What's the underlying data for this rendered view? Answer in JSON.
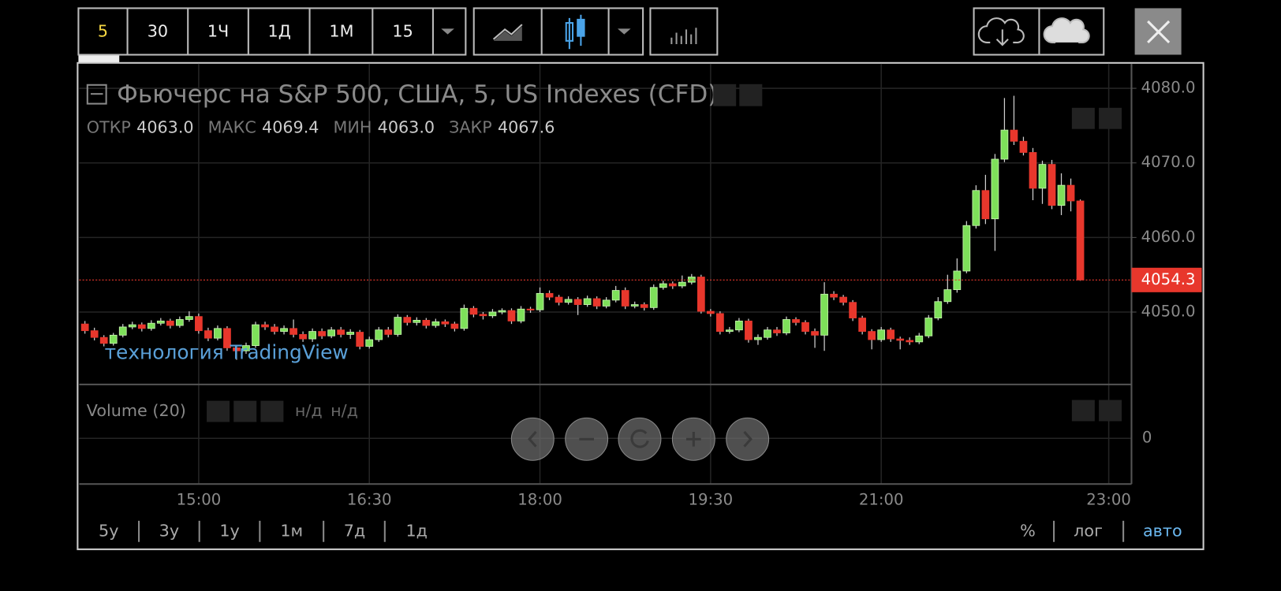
{
  "toolbar": {
    "intervals": [
      "5",
      "30",
      "1Ч",
      "1Д",
      "1М",
      "15"
    ]
  },
  "chart_data": {
    "type": "candlestick",
    "title": "Фьючерс на S&P 500, США, 5, US Indexes (CFD)",
    "ohlc_legend": [
      {
        "label": "ОТКР",
        "value": "4063.0"
      },
      {
        "label": "МАКС",
        "value": "4069.4"
      },
      {
        "label": "МИН",
        "value": "4063.0"
      },
      {
        "label": "ЗАКР",
        "value": "4067.6"
      }
    ],
    "x": [
      "14:00",
      "14:05",
      "14:10",
      "14:15",
      "14:20",
      "14:25",
      "14:30",
      "14:35",
      "14:40",
      "14:45",
      "14:50",
      "14:55",
      "15:00",
      "15:05",
      "15:10",
      "15:15",
      "15:20",
      "15:25",
      "15:30",
      "15:35",
      "15:40",
      "15:45",
      "15:50",
      "15:55",
      "16:00",
      "16:05",
      "16:10",
      "16:15",
      "16:20",
      "16:25",
      "16:30",
      "16:35",
      "16:40",
      "16:45",
      "16:50",
      "16:55",
      "17:00",
      "17:05",
      "17:10",
      "17:15",
      "17:20",
      "17:25",
      "17:30",
      "17:35",
      "17:40",
      "17:45",
      "17:50",
      "17:55",
      "18:00",
      "18:05",
      "18:10",
      "18:15",
      "18:20",
      "18:25",
      "18:30",
      "18:35",
      "18:40",
      "18:45",
      "18:50",
      "18:55",
      "19:00",
      "19:05",
      "19:10",
      "19:15",
      "19:20",
      "19:25",
      "19:30",
      "19:35",
      "19:40",
      "19:45",
      "19:50",
      "19:55",
      "20:00",
      "20:05",
      "20:10",
      "20:15",
      "20:20",
      "20:25",
      "20:30",
      "20:35",
      "20:40",
      "20:45",
      "20:50",
      "20:55",
      "21:00",
      "21:05",
      "21:10",
      "21:15",
      "21:20",
      "21:25",
      "21:30",
      "21:35",
      "21:40",
      "21:45",
      "21:50",
      "21:55",
      "22:00",
      "22:05",
      "22:10",
      "22:15",
      "22:20",
      "22:25",
      "22:30",
      "22:35",
      "22:40",
      "22:45"
    ],
    "open": [
      4048.4,
      4047.5,
      4046.6,
      4045.8,
      4046.9,
      4048.0,
      4048.3,
      4047.8,
      4048.5,
      4048.8,
      4048.2,
      4049.0,
      4049.4,
      4047.5,
      4046.5,
      4047.8,
      4045.2,
      4044.8,
      4045.5,
      4048.3,
      4048.0,
      4047.4,
      4047.8,
      4047.0,
      4046.4,
      4047.4,
      4046.8,
      4047.6,
      4047.0,
      4047.3,
      4045.4,
      4046.3,
      4047.6,
      4047.0,
      4049.3,
      4048.6,
      4048.9,
      4048.2,
      4048.7,
      4048.4,
      4047.8,
      4050.5,
      4049.7,
      4049.5,
      4050.0,
      4050.2,
      4048.8,
      4050.4,
      4050.3,
      4052.5,
      4052.0,
      4051.3,
      4051.7,
      4051.0,
      4051.8,
      4050.8,
      4051.6,
      4052.9,
      4050.8,
      4051.0,
      4050.6,
      4053.3,
      4053.8,
      4053.5,
      4054.0,
      4054.7,
      4050.1,
      4049.8,
      4047.4,
      4047.6,
      4048.8,
      4046.3,
      4046.6,
      4047.6,
      4047.2,
      4049.0,
      4048.6,
      4047.4,
      4046.9,
      4052.4,
      4052.0,
      4051.3,
      4049.2,
      4047.4,
      4046.3,
      4047.6,
      4046.4,
      4046.2,
      4046.0,
      4046.8,
      4049.2,
      4051.4,
      4053.0,
      4055.5,
      4061.6,
      4066.3,
      4062.5,
      4070.5,
      4074.4,
      4072.9,
      4071.4,
      4066.6,
      4069.8,
      4064.3,
      4067.0,
      4064.9
    ],
    "high": [
      4048.8,
      4047.9,
      4046.9,
      4047.2,
      4048.4,
      4048.7,
      4048.6,
      4048.9,
      4049.2,
      4049.1,
      4049.4,
      4050.1,
      4049.8,
      4047.9,
      4048.2,
      4048.1,
      4045.6,
      4045.9,
      4048.7,
      4048.7,
      4048.4,
      4048.2,
      4049.0,
      4047.4,
      4047.8,
      4047.8,
      4048.0,
      4048.0,
      4047.7,
      4047.6,
      4046.7,
      4048.0,
      4048.0,
      4049.7,
      4049.6,
      4049.3,
      4049.2,
      4049.1,
      4049.0,
      4048.7,
      4051.0,
      4050.8,
      4050.0,
      4050.4,
      4050.5,
      4050.5,
      4050.8,
      4050.7,
      4053.3,
      4052.9,
      4052.3,
      4052.1,
      4052.0,
      4052.2,
      4052.1,
      4052.0,
      4053.5,
      4053.3,
      4051.4,
      4051.3,
      4053.7,
      4054.2,
      4054.1,
      4054.9,
      4055.1,
      4055.0,
      4050.4,
      4050.1,
      4048.0,
      4049.2,
      4049.1,
      4047.0,
      4048.0,
      4048.0,
      4049.4,
      4049.3,
      4048.9,
      4047.8,
      4054.0,
      4052.8,
      4052.3,
      4051.6,
      4049.5,
      4047.7,
      4048.0,
      4047.9,
      4046.7,
      4046.6,
      4047.2,
      4049.6,
      4052.0,
      4055.0,
      4057.2,
      4062.2,
      4067.0,
      4068.4,
      4071.2,
      4078.7,
      4079.0,
      4073.5,
      4072.0,
      4070.3,
      4070.4,
      4068.6,
      4067.9,
      4065.1
    ],
    "low": [
      4047.1,
      4046.2,
      4045.4,
      4045.5,
      4046.6,
      4047.7,
      4047.4,
      4047.5,
      4048.2,
      4047.8,
      4047.9,
      4048.7,
      4047.1,
      4046.1,
      4046.2,
      4044.8,
      4043.6,
      4044.4,
      4045.2,
      4047.6,
      4047.0,
      4047.0,
      4046.6,
      4046.0,
      4046.0,
      4046.4,
      4046.5,
      4046.6,
      4046.4,
      4045.0,
      4045.1,
      4046.0,
      4046.6,
      4046.7,
      4048.2,
      4048.2,
      4047.8,
      4047.9,
      4048.0,
      4047.4,
      4047.5,
      4049.3,
      4049.0,
      4049.2,
      4049.7,
      4048.4,
      4048.5,
      4049.9,
      4050.0,
      4051.6,
      4050.9,
      4051.0,
      4049.6,
      4050.7,
      4050.4,
      4050.5,
      4051.3,
      4050.4,
      4050.5,
      4050.2,
      4050.3,
      4053.0,
      4053.1,
      4053.2,
      4053.7,
      4049.8,
      4049.4,
      4047.0,
      4047.1,
      4047.3,
      4045.9,
      4045.6,
      4046.3,
      4046.8,
      4046.9,
      4048.2,
      4047.0,
      4045.2,
      4044.8,
      4051.6,
      4050.9,
      4048.8,
      4047.0,
      4045.0,
      4046.0,
      4046.0,
      4045.0,
      4045.6,
      4045.7,
      4046.5,
      4048.9,
      4051.1,
      4052.6,
      4055.2,
      4061.2,
      4061.8,
      4058.2,
      4070.1,
      4072.4,
      4071.0,
      4065.0,
      4064.5,
      4063.8,
      4063.0,
      4063.5,
      4054.2
    ],
    "close": [
      4047.5,
      4046.6,
      4045.8,
      4046.9,
      4048.0,
      4048.3,
      4047.8,
      4048.5,
      4048.8,
      4048.2,
      4049.0,
      4049.4,
      4047.5,
      4046.5,
      4047.8,
      4045.2,
      4044.8,
      4045.5,
      4048.3,
      4048.0,
      4047.4,
      4047.8,
      4047.0,
      4046.4,
      4047.4,
      4046.8,
      4047.6,
      4047.0,
      4047.3,
      4045.4,
      4046.3,
      4047.6,
      4047.0,
      4049.3,
      4048.6,
      4048.9,
      4048.2,
      4048.7,
      4048.4,
      4047.8,
      4050.5,
      4049.7,
      4049.5,
      4050.0,
      4050.2,
      4048.8,
      4050.4,
      4050.3,
      4052.5,
      4052.0,
      4051.3,
      4051.7,
      4051.0,
      4051.8,
      4050.8,
      4051.6,
      4052.9,
      4050.8,
      4051.0,
      4050.6,
      4053.3,
      4053.8,
      4053.5,
      4054.0,
      4054.7,
      4050.1,
      4049.8,
      4047.4,
      4047.6,
      4048.8,
      4046.3,
      4046.6,
      4047.6,
      4047.2,
      4049.0,
      4048.6,
      4047.4,
      4046.9,
      4052.4,
      4052.0,
      4051.3,
      4049.2,
      4047.4,
      4046.3,
      4047.6,
      4046.4,
      4046.2,
      4046.0,
      4046.8,
      4049.2,
      4051.4,
      4053.0,
      4055.5,
      4061.6,
      4066.3,
      4062.5,
      4070.5,
      4074.4,
      4072.9,
      4071.4,
      4066.6,
      4069.8,
      4064.3,
      4067.0,
      4064.9,
      4054.3
    ],
    "up_color": "#7ee05a",
    "down_color": "#e8372c",
    "xlim": [
      "13:57",
      "23:12"
    ],
    "xticks": [
      "15:00",
      "16:30",
      "18:00",
      "19:30",
      "21:00",
      "23:00"
    ],
    "ylim": [
      4040.4,
      4083.3
    ],
    "yticks": [
      {
        "value": 4050,
        "label": "4050.0"
      },
      {
        "value": 4060,
        "label": "4060.0"
      },
      {
        "value": 4070,
        "label": "4070.0"
      },
      {
        "value": 4080,
        "label": "4080.0"
      }
    ],
    "last_price": 4054.3,
    "last_price_color": "#e8372c",
    "grid": true,
    "watermark": "технология TradingView"
  },
  "volume_pane": {
    "title": "Volume (20)",
    "values": [
      "н/д",
      "н/д"
    ],
    "yticks": [
      0
    ]
  },
  "range_buttons": [
    "5у",
    "3у",
    "1у",
    "1м",
    "7д",
    "1д"
  ],
  "scale_buttons": [
    "%",
    "лог",
    "авто"
  ]
}
